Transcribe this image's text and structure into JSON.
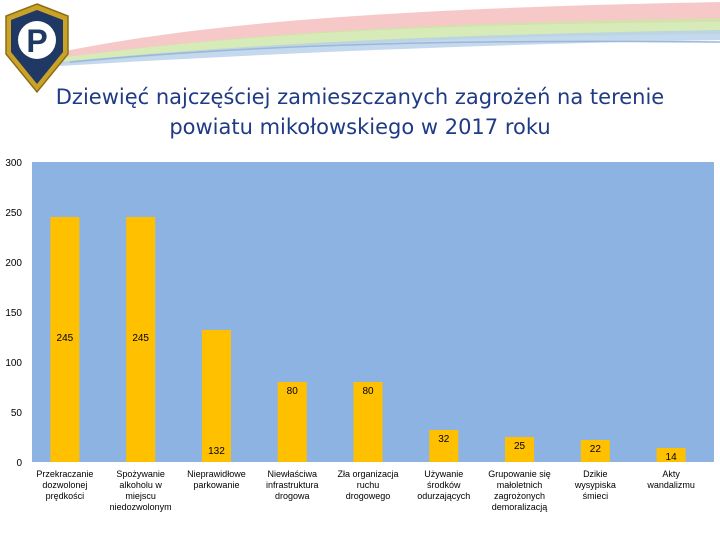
{
  "slide": {
    "title_line1": "Dziewięć najczęściej zamieszczanych zagrożeń na terenie",
    "title_line2": "powiatu mikołowskiego w 2017 roku",
    "logo_letter": "P"
  },
  "colors": {
    "plot_bg": "#8db3e2",
    "bar": "#ffc000",
    "title": "#1f3b86",
    "logo_blue": "#1f3864",
    "logo_gold": "#c9a227"
  },
  "chart_data": {
    "type": "bar",
    "categories": [
      [
        "Przekraczanie",
        "dozwolonej",
        "prędkości"
      ],
      [
        "Spożywanie",
        "alkoholu w",
        "miejscu",
        "niedozwolonym"
      ],
      [
        "Nieprawidłowe",
        "parkowanie"
      ],
      [
        "Niewłaściwa",
        "infrastruktura",
        "drogowa"
      ],
      [
        "Zła organizacja",
        "ruchu",
        "drogowego"
      ],
      [
        "Używanie",
        "środków",
        "odurzających"
      ],
      [
        "Grupowanie się",
        "małoletnich",
        "zagrożonych",
        "demoralizacją"
      ],
      [
        "Dzikie",
        "wysypiska",
        "śmieci"
      ],
      [
        "Akty",
        "wandalizmu"
      ]
    ],
    "values": [
      245,
      245,
      132,
      80,
      80,
      32,
      25,
      22,
      14
    ],
    "ylim": [
      0,
      300
    ],
    "yticks": [
      0,
      50,
      100,
      150,
      200,
      250,
      300
    ],
    "grid": false,
    "legend": false
  }
}
